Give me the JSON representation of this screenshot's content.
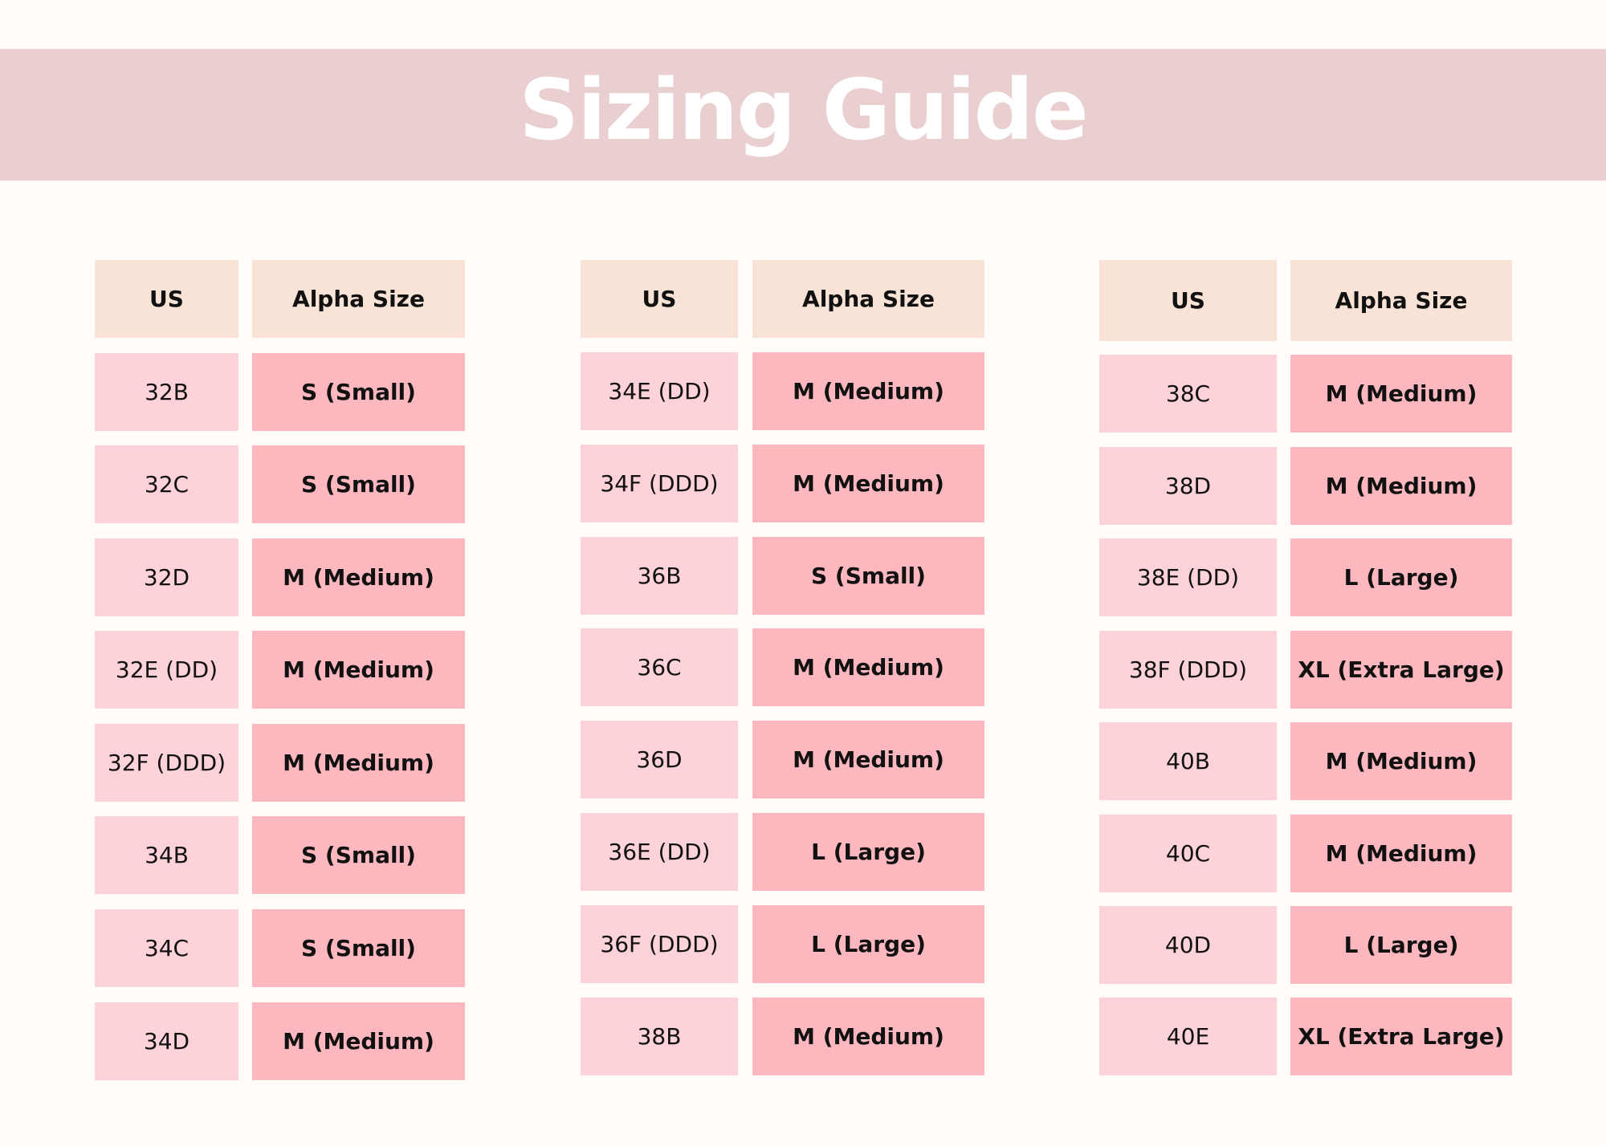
{
  "title": "Sizing Guide",
  "colors": {
    "background": "#FFFCFA",
    "banner": "#EACFD1",
    "header_cell": "#F8E3D6",
    "us_cell": "#FDD2D8",
    "alpha_cell": "#FCB8BE"
  },
  "tables": [
    {
      "headers": {
        "us": "US",
        "alpha": "Alpha Size"
      },
      "rows": [
        {
          "us": "32B",
          "alpha": "S (Small)"
        },
        {
          "us": "32C",
          "alpha": "S (Small)"
        },
        {
          "us": "32D",
          "alpha": "M (Medium)"
        },
        {
          "us": "32E (DD)",
          "alpha": "M (Medium)"
        },
        {
          "us": "32F (DDD)",
          "alpha": "M (Medium)"
        },
        {
          "us": "34B",
          "alpha": "S (Small)"
        },
        {
          "us": "34C",
          "alpha": "S (Small)"
        },
        {
          "us": "34D",
          "alpha": "M (Medium)"
        }
      ]
    },
    {
      "headers": {
        "us": "US",
        "alpha": "Alpha Size"
      },
      "rows": [
        {
          "us": "34E (DD)",
          "alpha": "M (Medium)"
        },
        {
          "us": "34F (DDD)",
          "alpha": "M (Medium)"
        },
        {
          "us": "36B",
          "alpha": "S (Small)"
        },
        {
          "us": "36C",
          "alpha": "M (Medium)"
        },
        {
          "us": "36D",
          "alpha": "M (Medium)"
        },
        {
          "us": "36E (DD)",
          "alpha": "L (Large)"
        },
        {
          "us": "36F (DDD)",
          "alpha": "L (Large)"
        },
        {
          "us": "38B",
          "alpha": "M (Medium)"
        }
      ]
    },
    {
      "headers": {
        "us": "US",
        "alpha": "Alpha Size"
      },
      "rows": [
        {
          "us": "38C",
          "alpha": "M (Medium)"
        },
        {
          "us": "38D",
          "alpha": "M (Medium)"
        },
        {
          "us": "38E (DD)",
          "alpha": "L (Large)"
        },
        {
          "us": "38F (DDD)",
          "alpha": "XL (Extra Large)"
        },
        {
          "us": "40B",
          "alpha": "M (Medium)"
        },
        {
          "us": "40C",
          "alpha": "M (Medium)"
        },
        {
          "us": "40D",
          "alpha": "L (Large)"
        },
        {
          "us": "40E",
          "alpha": "XL (Extra Large)"
        }
      ]
    }
  ]
}
